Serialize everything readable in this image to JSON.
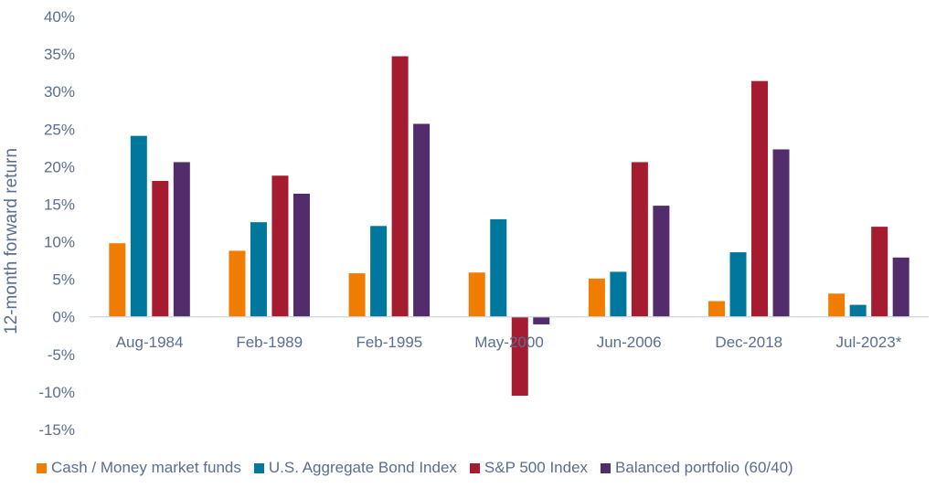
{
  "chart_data": {
    "type": "bar",
    "ylabel": "12-month forward return",
    "ylim": [
      -15,
      40
    ],
    "yticks": [
      40,
      35,
      30,
      25,
      20,
      15,
      10,
      5,
      0,
      -5,
      -10,
      -15
    ],
    "ytick_labels": [
      "40%",
      "35%",
      "30%",
      "25%",
      "20%",
      "15%",
      "10%",
      "5%",
      "0%",
      "-5%",
      "-10%",
      "-15%"
    ],
    "categories": [
      "Aug-1984",
      "Feb-1989",
      "Feb-1995",
      "May-2000",
      "Jun-2006",
      "Dec-2018",
      "Jul-2023*"
    ],
    "series": [
      {
        "name": "Cash / Money market funds",
        "color": "#f07c00",
        "values": [
          9.8,
          8.8,
          5.8,
          5.9,
          5.1,
          2.1,
          3.1
        ]
      },
      {
        "name": "U.S. Aggregate Bond Index",
        "color": "#00789e",
        "values": [
          24.1,
          12.6,
          12.1,
          13.0,
          6.0,
          8.6,
          1.6
        ]
      },
      {
        "name": "S&P 500 Index",
        "color": "#a51c30",
        "values": [
          18.1,
          18.8,
          34.7,
          -10.5,
          20.6,
          31.4,
          12.0
        ]
      },
      {
        "name": "Balanced portfolio (60/40)",
        "color": "#522c6b",
        "values": [
          20.6,
          16.4,
          25.7,
          -1.0,
          14.8,
          22.3,
          7.9
        ]
      }
    ],
    "legend_position": "bottom",
    "grid": false
  }
}
